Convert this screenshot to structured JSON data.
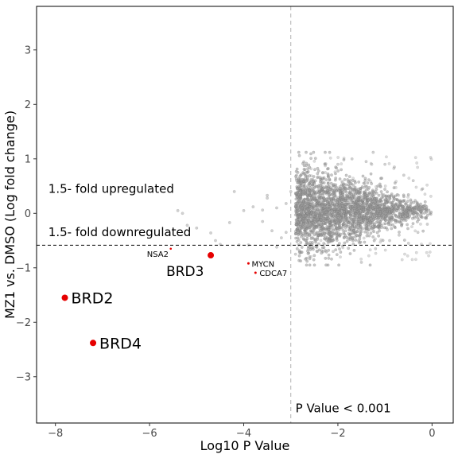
{
  "chart_data": {
    "type": "scatter",
    "title": "",
    "xlabel": "Log10 P Value",
    "ylabel": "MZ1 vs. DMSO (Log fold change)",
    "xlim": [
      -8.4,
      0.45
    ],
    "ylim": [
      -3.85,
      3.8
    ],
    "x_ticks": [
      -8,
      -6,
      -4,
      -2,
      0
    ],
    "y_ticks": [
      -3,
      -2,
      -1,
      0,
      1,
      2,
      3
    ],
    "grid": false,
    "legend": "none",
    "reference_lines": {
      "vertical_x": -3,
      "horizontal_y": -0.585
    },
    "background_series": {
      "color": "#9a9a9a",
      "description_points": "dense cloud of proteins, log fold change mostly between -0.9 and 1.2, log10 P value mostly between -4.5 and 0",
      "sample_points": [
        [
          -3.1,
          0.18
        ],
        [
          -3.3,
          0.1
        ],
        [
          -3.5,
          0.28
        ],
        [
          -3.4,
          -0.32
        ],
        [
          -3.2,
          -0.45
        ],
        [
          -3.6,
          -0.15
        ],
        [
          -3.8,
          0.12
        ],
        [
          -3.5,
          0.33
        ],
        [
          -3.3,
          -0.62
        ],
        [
          -3.9,
          -0.58
        ],
        [
          -4.1,
          -0.58
        ],
        [
          -4.3,
          -0.17
        ],
        [
          -4.2,
          0.4
        ],
        [
          -4.5,
          -0.57
        ],
        [
          -4.6,
          -0.5
        ],
        [
          -4.7,
          -0.36
        ],
        [
          -5.0,
          -0.27
        ],
        [
          -5.2,
          -0.22
        ],
        [
          -5.3,
          0.0
        ],
        [
          -5.4,
          0.05
        ],
        [
          -4.0,
          0.05
        ],
        [
          -3.6,
          0.06
        ],
        [
          -3.1,
          -0.35
        ],
        [
          -3.0,
          0.4
        ],
        [
          -2.9,
          -0.75
        ],
        [
          -2.8,
          0.5
        ],
        [
          -2.6,
          -0.8
        ],
        [
          -2.5,
          0.55
        ],
        [
          -2.3,
          -0.55
        ],
        [
          -2.2,
          0.7
        ],
        [
          -2.1,
          -0.7
        ],
        [
          -2.0,
          0.9
        ],
        [
          -1.9,
          -0.6
        ],
        [
          -1.7,
          1.0
        ],
        [
          -1.5,
          -0.9
        ],
        [
          -1.4,
          0.95
        ],
        [
          -1.25,
          1.12
        ],
        [
          -1.2,
          -0.65
        ],
        [
          -1.0,
          0.9
        ],
        [
          -0.9,
          -0.5
        ],
        [
          -0.8,
          0.85
        ],
        [
          -0.7,
          -0.4
        ],
        [
          -0.6,
          0.7
        ],
        [
          -0.5,
          -0.55
        ],
        [
          -0.4,
          0.6
        ],
        [
          -0.3,
          -0.35
        ],
        [
          -0.2,
          0.45
        ],
        [
          -0.1,
          -0.2
        ],
        [
          -2.4,
          0.3
        ],
        [
          -2.7,
          -0.3
        ],
        [
          -1.8,
          0.45
        ],
        [
          -1.6,
          -0.4
        ],
        [
          -1.1,
          0.5
        ],
        [
          -0.95,
          -0.3
        ]
      ]
    },
    "highlighted": [
      {
        "label": "BRD2",
        "x": -7.8,
        "y": -1.55
      },
      {
        "label": "BRD4",
        "x": -7.2,
        "y": -2.38
      },
      {
        "label": "BRD3",
        "x": -4.7,
        "y": -0.77
      },
      {
        "label": "NSA2",
        "x": -5.55,
        "y": -0.65
      },
      {
        "label": "MYCN",
        "x": -3.9,
        "y": -0.92
      },
      {
        "label": "CDCA7",
        "x": -3.75,
        "y": -1.09
      }
    ],
    "highlight_color": "#e60000",
    "annotations": [
      {
        "text": "1.5- fold upregulated",
        "x": -8.15,
        "y": 0.38
      },
      {
        "text": "1.5- fold downregulated",
        "x": -8.15,
        "y": -0.42
      },
      {
        "text": "P Value < 0.001",
        "x": -2.9,
        "y": -3.65
      }
    ]
  }
}
